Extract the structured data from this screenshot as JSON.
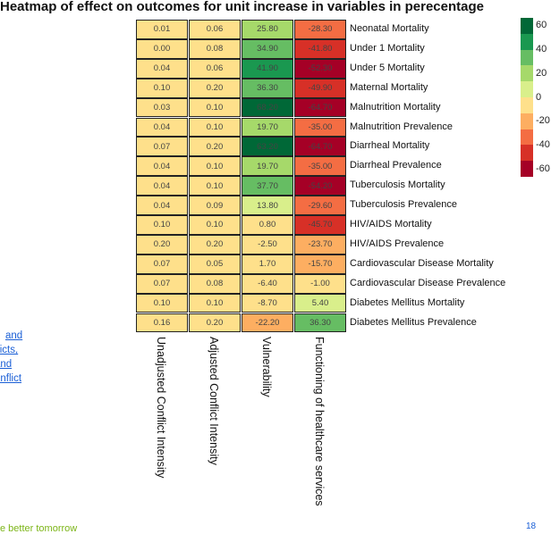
{
  "chart_data": {
    "type": "heatmap",
    "title": "Heatmap of effect on outcomes for unit increase in variables in perecentage",
    "columns": [
      "Unadjusted Conflict Intensity",
      "Adjusted Conflict Intensity",
      "Vulnerability",
      "Functioning of healthcare services"
    ],
    "rows": [
      "Neonatal Mortality",
      "Under 1 Mortality",
      "Under 5 Mortality",
      "Maternal Mortality",
      "Malnutrition Mortality",
      "Malnutrition Prevalence",
      "Diarrheal Mortality",
      "Diarrheal Prevalence",
      "Tuberculosis Mortality",
      "Tuberculosis Prevalence",
      "HIV/AIDS Mortality",
      "HIV/AIDS Prevalence",
      "Cardiovascular Disease Mortality",
      "Cardiovascular Disease Prevalence",
      "Diabetes Mellitus Mortality",
      "Diabetes Mellitus Prevalence"
    ],
    "values": [
      [
        "0.01",
        "0.06",
        "25.80",
        "-28.30"
      ],
      [
        "0.00",
        "0.08",
        "34.90",
        "-41.80"
      ],
      [
        "0.04",
        "0.06",
        "41.90",
        "-52.30"
      ],
      [
        "0.10",
        "0.20",
        "36.30",
        "-49.90"
      ],
      [
        "0.03",
        "0.10",
        "68.20",
        "-64.70"
      ],
      [
        "0.04",
        "0.10",
        "19.70",
        "-35.00"
      ],
      [
        "0.07",
        "0.20",
        "63.20",
        "-64.70"
      ],
      [
        "0.04",
        "0.10",
        "19.70",
        "-35.00"
      ],
      [
        "0.04",
        "0.10",
        "37.70",
        "-54.20"
      ],
      [
        "0.04",
        "0.09",
        "13.80",
        "-29.60"
      ],
      [
        "0.10",
        "0.10",
        "0.80",
        "-45.70"
      ],
      [
        "0.20",
        "0.20",
        "-2.50",
        "-23.70"
      ],
      [
        "0.07",
        "0.05",
        "1.70",
        "-15.70"
      ],
      [
        "0.07",
        "0.08",
        "-6.40",
        "-1.00"
      ],
      [
        "0.10",
        "0.10",
        "-8.70",
        "5.40"
      ],
      [
        "0.16",
        "0.20",
        "-22.20",
        "36.30"
      ]
    ],
    "legend": {
      "placement": "right",
      "ticks": [
        "60",
        "40",
        "20",
        "0",
        "-20",
        "-40",
        "-60"
      ],
      "colors": [
        "#006837",
        "#1a9850",
        "#66bd63",
        "#a6d96a",
        "#d9ef8b",
        "#fee08b",
        "#fdae61",
        "#f46d43",
        "#d73027",
        "#a50026"
      ]
    }
  },
  "page": {
    "side_link_lines": [
      "and",
      "flicts,",
      "and",
      "onflict"
    ],
    "footer_text": "e better tomorrow",
    "page_number": "18"
  }
}
